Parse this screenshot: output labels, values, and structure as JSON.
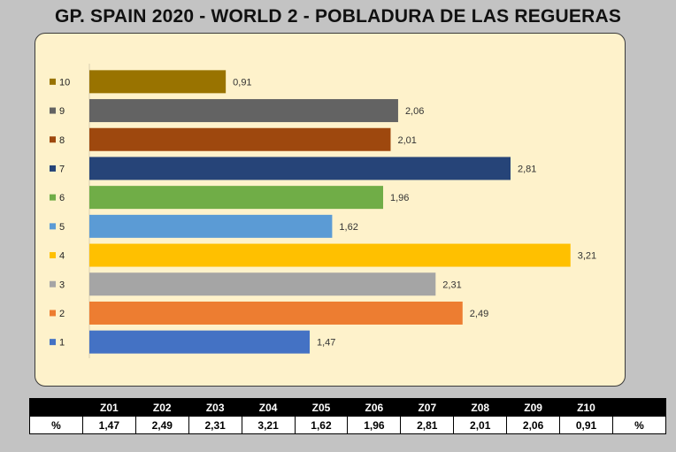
{
  "title": "GP. SPAIN 2020 - WORLD 2 - POBLADURA DE LAS REGUERAS",
  "chart_data": {
    "type": "bar",
    "orientation": "horizontal",
    "categories": [
      "1",
      "2",
      "3",
      "4",
      "5",
      "6",
      "7",
      "8",
      "9",
      "10"
    ],
    "values": [
      1.47,
      2.49,
      2.31,
      3.21,
      1.62,
      1.96,
      2.81,
      2.01,
      2.06,
      0.91
    ],
    "value_labels": [
      "1,47",
      "2,49",
      "2,31",
      "3,21",
      "1,62",
      "1,96",
      "2,81",
      "2,01",
      "2,06",
      "0,91"
    ],
    "colors": [
      "#4472c4",
      "#ed7d31",
      "#a5a5a5",
      "#ffc000",
      "#5b9bd5",
      "#70ad47",
      "#264478",
      "#9e480e",
      "#636363",
      "#997300"
    ],
    "xlim": [
      0,
      3.3
    ],
    "grid": false,
    "legend": "left"
  },
  "table": {
    "headers": [
      "",
      "Z01",
      "Z02",
      "Z03",
      "Z04",
      "Z05",
      "Z06",
      "Z07",
      "Z08",
      "Z09",
      "Z10",
      ""
    ],
    "row_label": "%",
    "row_suffix": "%",
    "values": [
      "1,47",
      "2,49",
      "2,31",
      "3,21",
      "1,62",
      "1,96",
      "2,81",
      "2,01",
      "2,06",
      "0,91"
    ]
  }
}
